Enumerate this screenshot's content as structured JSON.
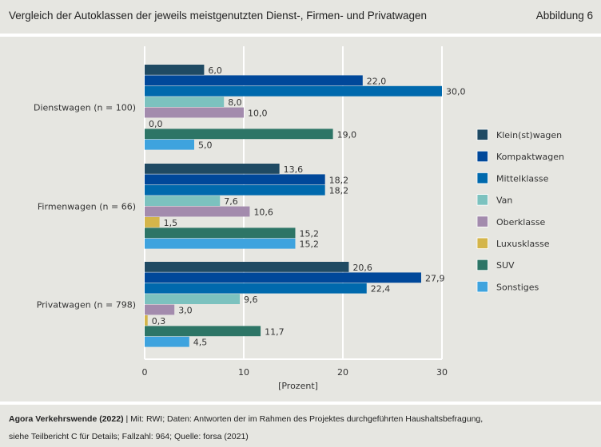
{
  "header": {
    "title": "Vergleich der Autoklassen der jeweils meistgenutzten Dienst-, Firmen- und Privatwagen",
    "figure_label": "Abbildung 6"
  },
  "footer": {
    "source_bold": "Agora Verkehrswende (2022)",
    "source_rest": " | Mit: RWI; Daten: Antworten der im Rahmen des Projektes durchgeführten Haushaltsbefragung,",
    "line2": "siehe Teilbericht C für Details; Fallzahl: 964; Quelle: forsa (2021)"
  },
  "chart_data": {
    "type": "bar",
    "orientation": "horizontal",
    "title": "Vergleich der Autoklassen der jeweils meistgenutzten Dienst-, Firmen- und Privatwagen",
    "xlabel": "[Prozent]",
    "ylabel": "",
    "xlim": [
      0,
      30
    ],
    "xticks": [
      0,
      10,
      20,
      30
    ],
    "xtick_labels": [
      "0",
      "10",
      "20",
      "30"
    ],
    "grid": true,
    "legend_position": "right",
    "categories": [
      "Dienstwagen (n = 100)",
      "Firmenwagen (n = 66)",
      "Privatwagen (n = 798)"
    ],
    "series": [
      {
        "name": "Klein(st)wagen",
        "color": "#1f4a63",
        "values": [
          6.0,
          13.6,
          20.6
        ],
        "labels": [
          "6,0",
          "13,6",
          "20,6"
        ]
      },
      {
        "name": "Kompaktwagen",
        "color": "#00489a",
        "values": [
          22.0,
          18.2,
          27.9
        ],
        "labels": [
          "22,0",
          "18,2",
          "27,9"
        ]
      },
      {
        "name": "Mittelklasse",
        "color": "#0069ad",
        "values": [
          30.0,
          18.2,
          22.4
        ],
        "labels": [
          "30,0",
          "18,2",
          "22,4"
        ]
      },
      {
        "name": "Van",
        "color": "#7cc2bf",
        "values": [
          8.0,
          7.6,
          9.6
        ],
        "labels": [
          "8,0",
          "7,6",
          "9,6"
        ]
      },
      {
        "name": "Oberklasse",
        "color": "#a38bad",
        "values": [
          10.0,
          10.6,
          3.0
        ],
        "labels": [
          "10,0",
          "10,6",
          "3,0"
        ]
      },
      {
        "name": "Luxusklasse",
        "color": "#d4b54a",
        "values": [
          0.0,
          1.5,
          0.3
        ],
        "labels": [
          "0,0",
          "1,5",
          "0,3"
        ]
      },
      {
        "name": "SUV",
        "color": "#2d7566",
        "values": [
          19.0,
          15.2,
          11.7
        ],
        "labels": [
          "19,0",
          "15,2",
          "11,7"
        ]
      },
      {
        "name": "Sonstiges",
        "color": "#3ea3de",
        "values": [
          5.0,
          15.2,
          4.5
        ],
        "labels": [
          "5,0",
          "15,2",
          "4,5"
        ]
      }
    ]
  }
}
